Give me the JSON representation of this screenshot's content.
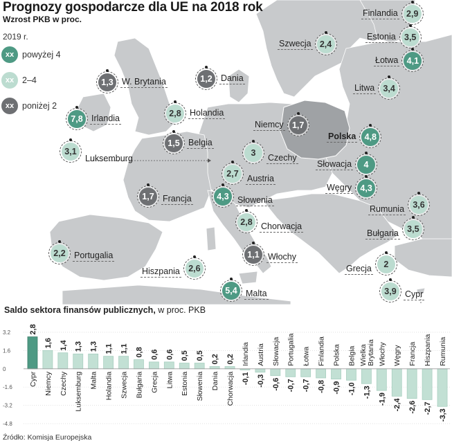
{
  "header": {
    "title": "Prognozy gospodarcze dla UE na 2018 rok",
    "subtitle": "Wzrost PKB w proc."
  },
  "legend": {
    "year": "2019 r.",
    "items": [
      {
        "badge": "xx",
        "label": "powyżej 4",
        "color": "#4e9a84"
      },
      {
        "badge": "xx",
        "label": "2–4",
        "color": "#bcdcd0"
      },
      {
        "badge": "xx",
        "label": "poniżej 2",
        "color": "#6e7073"
      }
    ]
  },
  "colors": {
    "high": "#4e9a84",
    "mid": "#bcdcd0",
    "low": "#6e7073",
    "land": "#c8cacc",
    "poland": "#9fa2a5",
    "sea": "#ffffff",
    "bar_fill": "#c2e0d4",
    "bar_highlight": "#4e9a84"
  },
  "countries": [
    {
      "name": "Finlandia",
      "value": "2,9",
      "level": "mid",
      "bold": false
    },
    {
      "name": "Szwecja",
      "value": "2,4",
      "level": "mid",
      "bold": false
    },
    {
      "name": "Estonia",
      "value": "3,5",
      "level": "mid",
      "bold": false
    },
    {
      "name": "Łotwa",
      "value": "4,1",
      "level": "high",
      "bold": false
    },
    {
      "name": "W. Brytania",
      "value": "1,3",
      "level": "low",
      "bold": false
    },
    {
      "name": "Dania",
      "value": "1,2",
      "level": "low",
      "bold": false
    },
    {
      "name": "Litwa",
      "value": "3,4",
      "level": "mid",
      "bold": false
    },
    {
      "name": "Irlandia",
      "value": "7,8",
      "level": "high",
      "bold": false
    },
    {
      "name": "Holandia",
      "value": "2,8",
      "level": "mid",
      "bold": false
    },
    {
      "name": "Niemcy",
      "value": "1,7",
      "level": "low",
      "bold": false
    },
    {
      "name": "Polska",
      "value": "4,8",
      "level": "high",
      "bold": true
    },
    {
      "name": "Luksemburg",
      "value": "3,1",
      "level": "mid",
      "bold": false
    },
    {
      "name": "Belgia",
      "value": "1,5",
      "level": "low",
      "bold": false
    },
    {
      "name": "Czechy",
      "value": "3",
      "level": "mid",
      "bold": false
    },
    {
      "name": "Słowacja",
      "value": "4",
      "level": "high",
      "bold": false
    },
    {
      "name": "Austria",
      "value": "2,7",
      "level": "mid",
      "bold": false
    },
    {
      "name": "Węgry",
      "value": "4,3",
      "level": "high",
      "bold": false
    },
    {
      "name": "Francja",
      "value": "1,7",
      "level": "low",
      "bold": false
    },
    {
      "name": "Słowenia",
      "value": "4,3",
      "level": "high",
      "bold": false
    },
    {
      "name": "Rumunia",
      "value": "3,6",
      "level": "mid",
      "bold": false
    },
    {
      "name": "Chorwacja",
      "value": "2,8",
      "level": "mid",
      "bold": false
    },
    {
      "name": "Bułgaria",
      "value": "3,5",
      "level": "mid",
      "bold": false
    },
    {
      "name": "Portugalia",
      "value": "2,2",
      "level": "mid",
      "bold": false
    },
    {
      "name": "Włochy",
      "value": "1,1",
      "level": "low",
      "bold": false
    },
    {
      "name": "Hiszpania",
      "value": "2,6",
      "level": "mid",
      "bold": false
    },
    {
      "name": "Grecja",
      "value": "2",
      "level": "mid",
      "bold": false
    },
    {
      "name": "Malta",
      "value": "5,4",
      "level": "high",
      "bold": false
    },
    {
      "name": "Cypr",
      "value": "3,9",
      "level": "mid",
      "bold": false
    }
  ],
  "chart_data": {
    "type": "bar",
    "title": "Saldo sektora finansów publicznych,",
    "subtitle": "w proc. PKB",
    "ylim": [
      -4.8,
      3.2
    ],
    "yticks": [
      "3.2",
      "1.6",
      "0",
      "-1.6",
      "-3.2",
      "-4.8"
    ],
    "ytick_values": [
      3.2,
      1.6,
      0,
      -1.6,
      -3.2,
      -4.8
    ],
    "grid": true,
    "highlight": "Cypr",
    "categories": [
      "Cypr",
      "Niemcy",
      "Czechy",
      "Luksemburg",
      "Malta",
      "Holandia",
      "Szwecja",
      "Bułgaria",
      "Grecja",
      "Litwa",
      "Estonia",
      "Słowenia",
      "Dania",
      "Chorwacja",
      "Irlandia",
      "Austria",
      "Słowacja",
      "Portugalia",
      "Łotwa",
      "Finlandia",
      "Polska",
      "Belgia",
      "Wielka Brytania",
      "Włochy",
      "Węgry",
      "Francja",
      "Hiszpania",
      "Rumunia"
    ],
    "values": [
      2.8,
      1.6,
      1.4,
      1.3,
      1.3,
      1.1,
      1.1,
      0.8,
      0.6,
      0.6,
      0.5,
      0.5,
      0.2,
      0.2,
      -0.1,
      -0.3,
      -0.6,
      -0.7,
      -0.7,
      -0.8,
      -0.9,
      -1.0,
      -1.3,
      -1.9,
      -2.4,
      -2.6,
      -2.7,
      -3.3
    ],
    "value_labels": [
      "2,8",
      "1,6",
      "1,4",
      "1,3",
      "1,3",
      "1,1",
      "1,1",
      "0,8",
      "0,6",
      "0,6",
      "0,5",
      "0,5",
      "0,2",
      "0,2",
      "-0,1",
      "-0,3",
      "-0,6",
      "-0,7",
      "-0,7",
      "-0,8",
      "-0,9",
      "-1,0",
      "-1,3",
      "-1,9",
      "-2,4",
      "-2,6",
      "-2,7",
      "-3,3"
    ],
    "category_labels": [
      [
        "Cypr"
      ],
      [
        "Niemcy"
      ],
      [
        "Czechy"
      ],
      [
        "Luksemburg"
      ],
      [
        "Malta"
      ],
      [
        "Holandia"
      ],
      [
        "Szwecja"
      ],
      [
        "Bułgaria"
      ],
      [
        "Grecja"
      ],
      [
        "Litwa"
      ],
      [
        "Estonia"
      ],
      [
        "Słowenia"
      ],
      [
        "Dania"
      ],
      [
        "Chorwacja"
      ],
      [
        "Irlandia"
      ],
      [
        "Austria"
      ],
      [
        "Słowacja"
      ],
      [
        "Portugalia"
      ],
      [
        "Łotwa"
      ],
      [
        "Finlandia"
      ],
      [
        "Polska"
      ],
      [
        "Belgia"
      ],
      [
        "Wielka",
        "Brytania"
      ],
      [
        "Włochy"
      ],
      [
        "Węgry"
      ],
      [
        "Francja"
      ],
      [
        "Hiszpania"
      ],
      [
        "Rumunia"
      ]
    ]
  },
  "source": "Źródło: Komisja Europejska"
}
